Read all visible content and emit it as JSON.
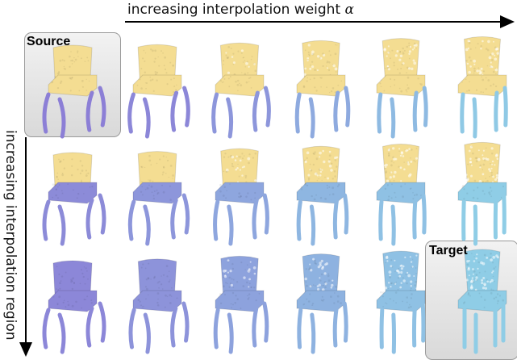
{
  "top_axis_label": "increasing interpolation weight",
  "top_axis_symbol": "α",
  "side_axis_label": "increasing interpolation region",
  "source_label": "Source",
  "target_label": "Target",
  "colors": {
    "seat_back_source": "#f4dd92",
    "legs_source": "#8c7fd6",
    "target": "#8fcde6"
  },
  "grid": {
    "rows": 3,
    "columns": 6,
    "cells": [
      {
        "row": 0,
        "col": 0,
        "back": 0.0,
        "body": 0.0,
        "style": "source"
      },
      {
        "row": 0,
        "col": 1,
        "back": 0.05,
        "body": 0.1,
        "style": "mix"
      },
      {
        "row": 0,
        "col": 2,
        "back": 0.2,
        "body": 0.3,
        "style": "mix"
      },
      {
        "row": 0,
        "col": 3,
        "back": 0.4,
        "body": 0.55,
        "style": "mix"
      },
      {
        "row": 0,
        "col": 4,
        "back": 0.6,
        "body": 0.75,
        "style": "mix"
      },
      {
        "row": 0,
        "col": 5,
        "back": 0.75,
        "body": 0.95,
        "style": "mix"
      },
      {
        "row": 1,
        "col": 0,
        "back": 0.0,
        "body": 0.15,
        "style": "mix"
      },
      {
        "row": 1,
        "col": 1,
        "back": 0.1,
        "body": 0.3,
        "style": "mix"
      },
      {
        "row": 1,
        "col": 2,
        "back": 0.35,
        "body": 0.5,
        "style": "mix"
      },
      {
        "row": 1,
        "col": 3,
        "back": 0.55,
        "body": 0.7,
        "style": "mix"
      },
      {
        "row": 1,
        "col": 4,
        "back": 0.75,
        "body": 0.85,
        "style": "mix"
      },
      {
        "row": 1,
        "col": 5,
        "back": 0.9,
        "body": 1.0,
        "style": "mix"
      },
      {
        "row": 2,
        "col": 0,
        "back": 0.0,
        "body": 0.1,
        "style": "uniform"
      },
      {
        "row": 2,
        "col": 1,
        "back": 0.15,
        "body": 0.25,
        "style": "uniform"
      },
      {
        "row": 2,
        "col": 2,
        "back": 0.4,
        "body": 0.45,
        "style": "uniform"
      },
      {
        "row": 2,
        "col": 3,
        "back": 0.6,
        "body": 0.65,
        "style": "uniform"
      },
      {
        "row": 2,
        "col": 4,
        "back": 0.85,
        "body": 0.85,
        "style": "uniform"
      },
      {
        "row": 2,
        "col": 5,
        "back": 1.0,
        "body": 1.0,
        "style": "target"
      }
    ]
  }
}
